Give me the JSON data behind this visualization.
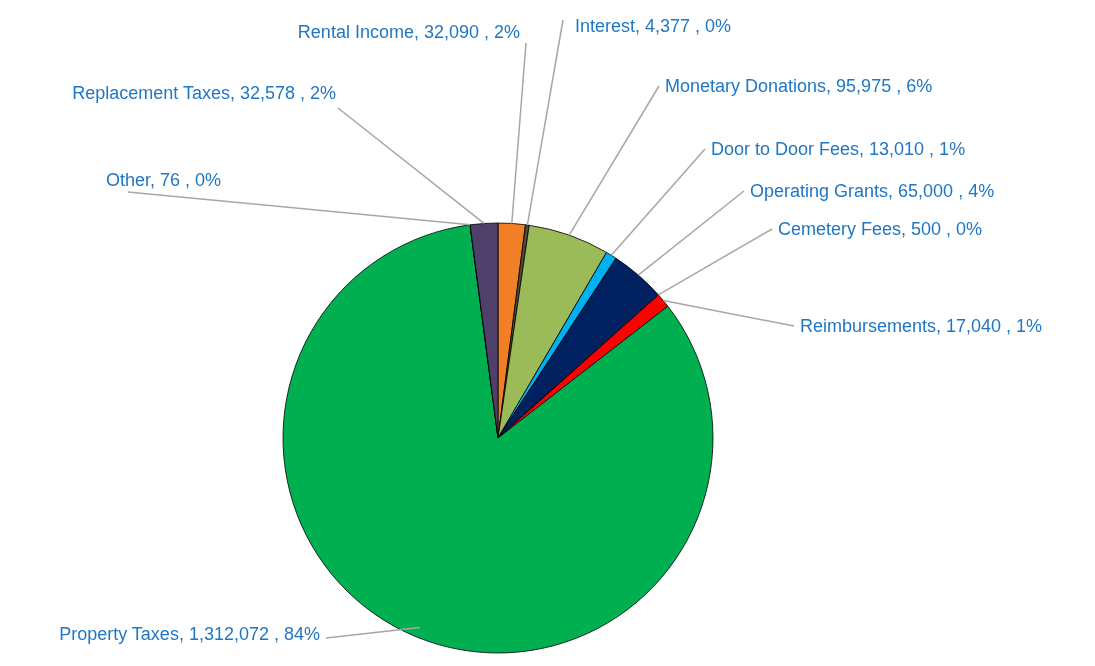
{
  "chart_data": {
    "type": "pie",
    "categories": [
      "Rental Income",
      "Interest",
      "Monetary Donations",
      "Door to Door Fees",
      "Operating Grants",
      "Cemetery Fees",
      "Reimbursements",
      "Property Taxes",
      "Other",
      "Replacement Taxes"
    ],
    "values": [
      32090,
      4377,
      95975,
      13010,
      65000,
      500,
      17040,
      1312072,
      76,
      32578
    ],
    "value_labels": [
      ",  32,090 , 2%",
      ",  4,377 , 0%",
      ",  95,975 , 6%",
      ",  13,010 , 1%",
      ",  65,000 , 4%",
      ",  500 , 0%",
      ",  17,040 , 1%",
      ",  1,312,072 , 84%",
      ",  76 , 0%",
      ",  32,578 , 2%"
    ],
    "colors": [
      "#f07f25",
      "#4f4a3a",
      "#9bbb59",
      "#00b0f0",
      "#002060",
      "#ffffff",
      "#ff0000",
      "#00b050",
      "#1f1f3f",
      "#4f3f6b"
    ],
    "legend": false
  }
}
